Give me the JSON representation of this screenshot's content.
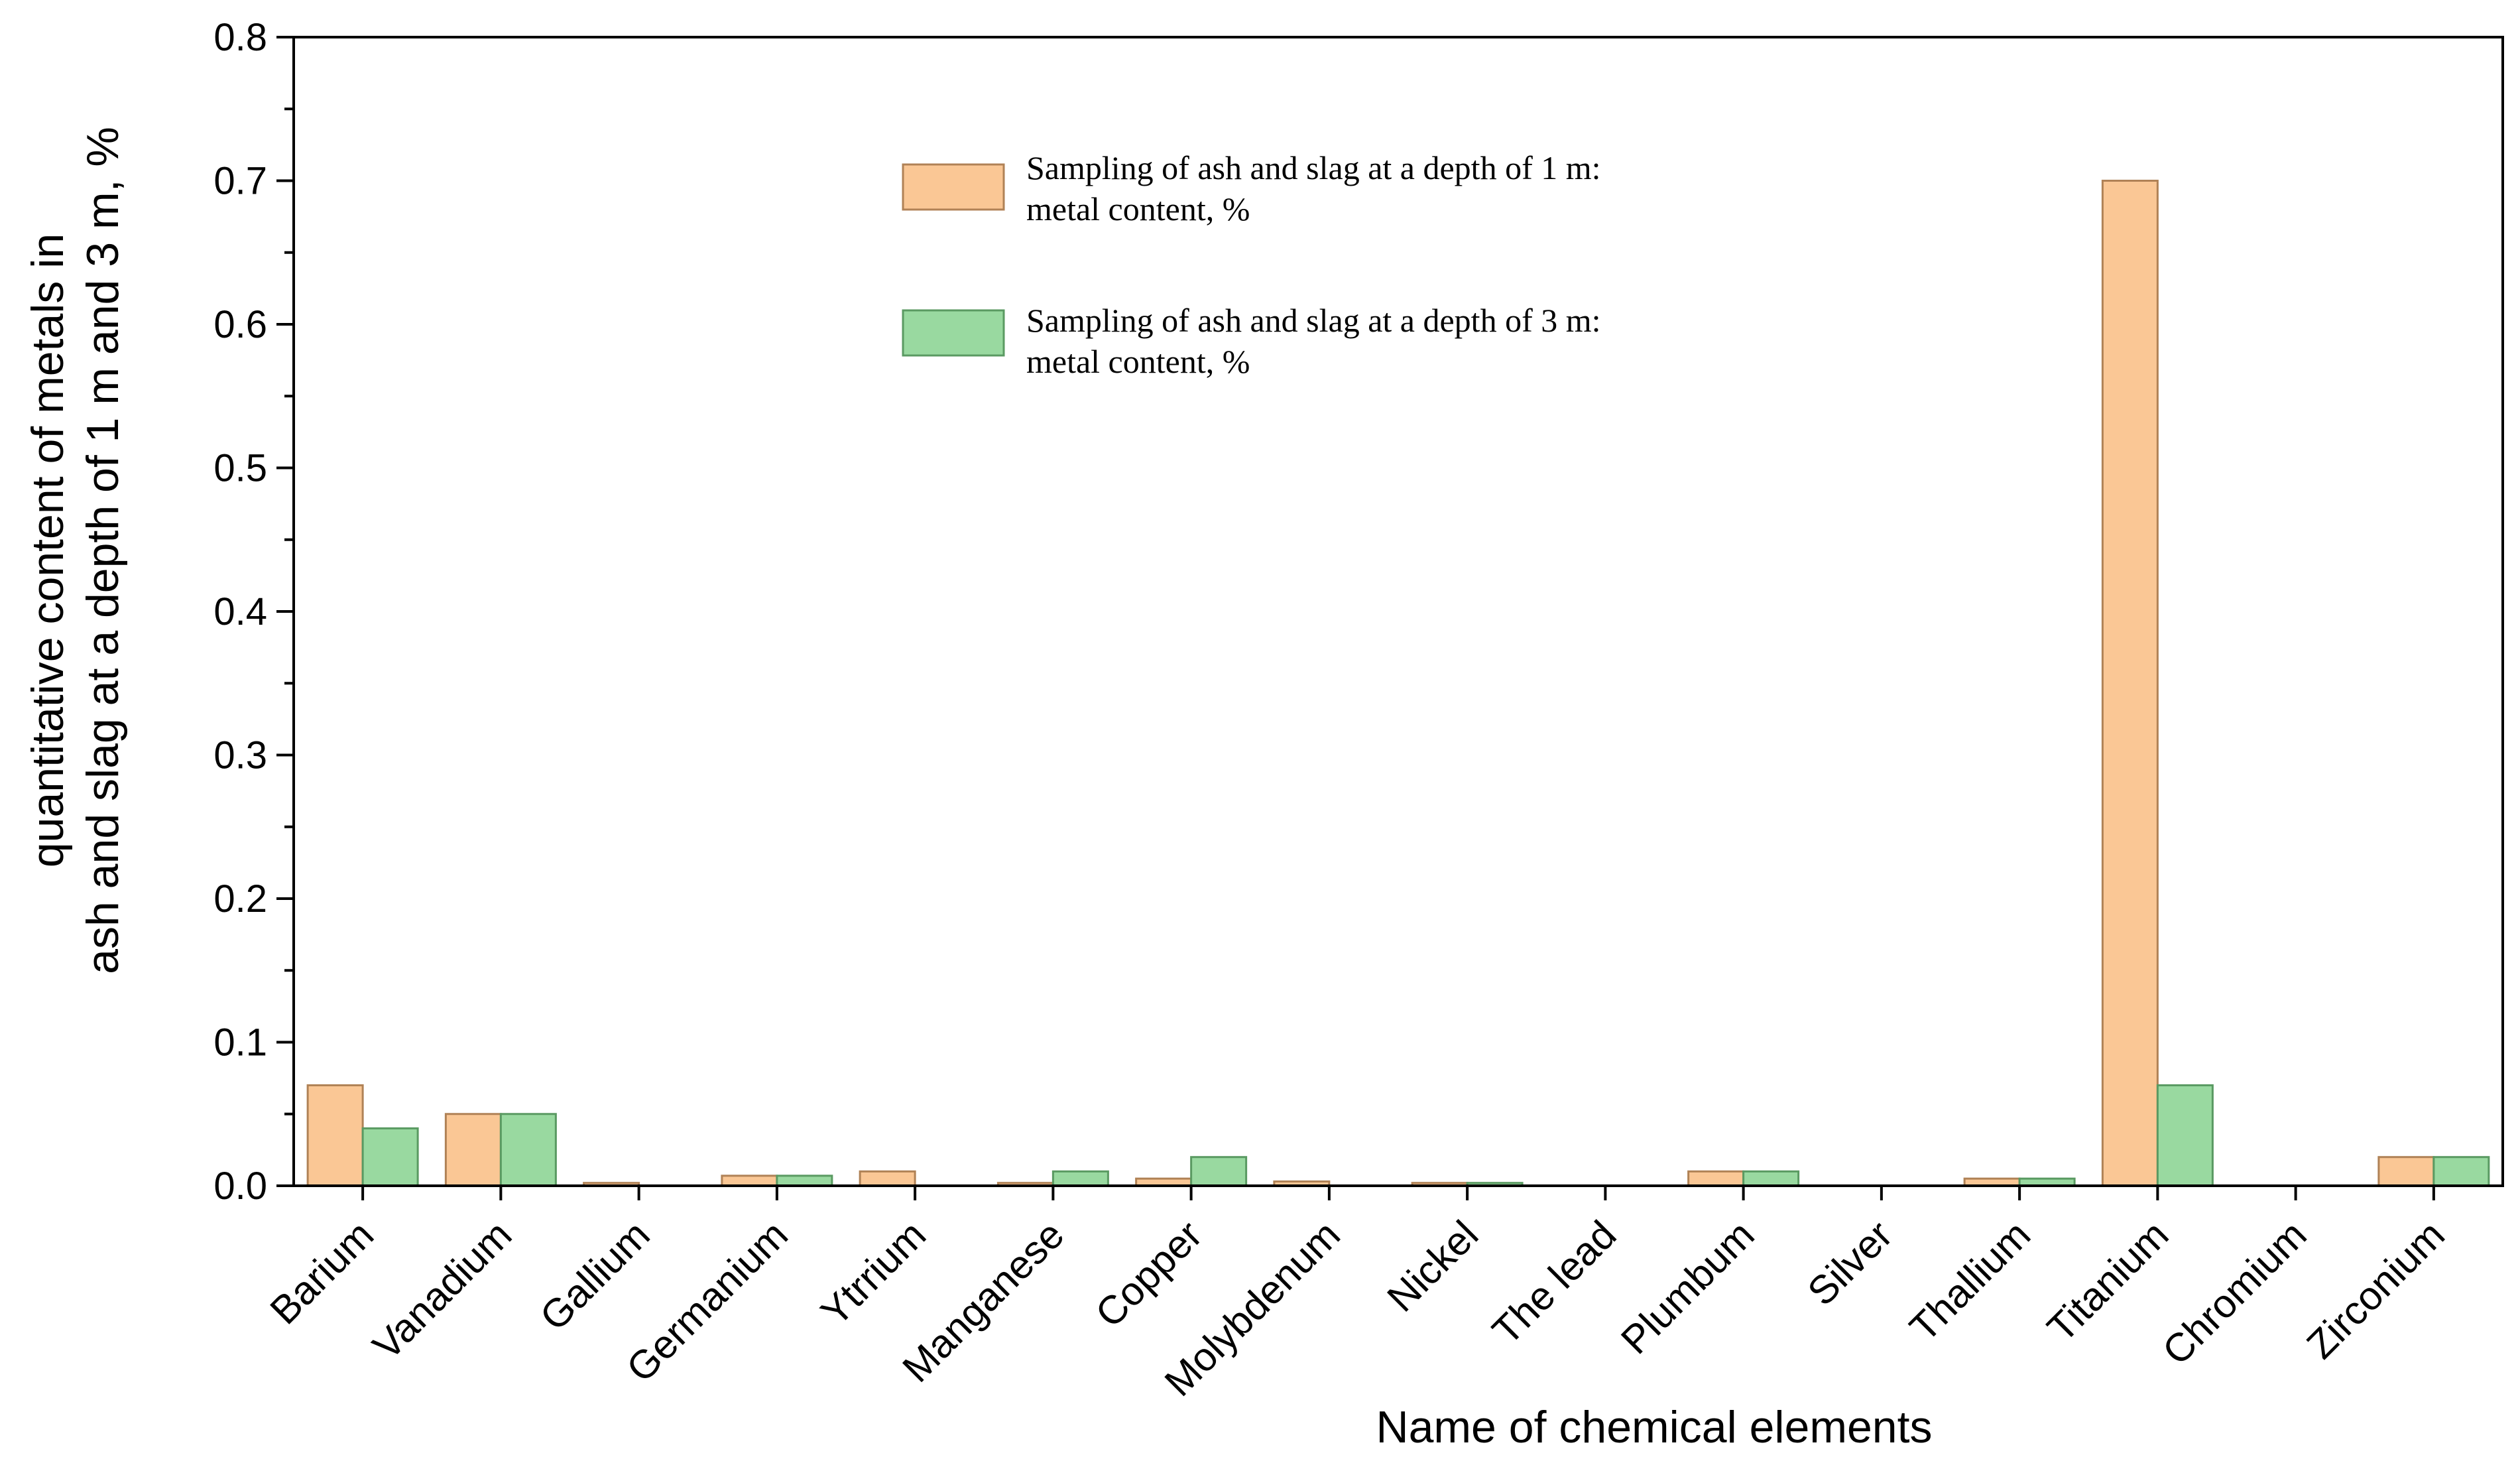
{
  "chart_data": {
    "type": "bar",
    "title": "",
    "xlabel": "Name of chemical elements",
    "ylabel_lines": [
      "quantitative content of metals in",
      "ash and slag  at a depth of 1 m and 3 m, %"
    ],
    "ylim": [
      0,
      0.8
    ],
    "yticks": [
      "0.0",
      "0.1",
      "0.2",
      "0.3",
      "0.4",
      "0.5",
      "0.6",
      "0.7",
      "0.8"
    ],
    "grid": false,
    "legend_position": "top-center",
    "categories": [
      "Barium",
      "Vanadium",
      "Gallium",
      "Germanium",
      "Ytrrium",
      "Manganese",
      "Copper",
      "Molybdenum",
      "Nickel",
      "The lead",
      "Plumbum",
      "Silver",
      "Thallium",
      "Titanium",
      "Chromium",
      "Zirconium"
    ],
    "series": [
      {
        "name": "Sampling of ash and slag at a depth of 1 m: metal content, %",
        "legend_lines": [
          "Sampling of ash and slag at a depth of 1 m:",
          "metal content, %"
        ],
        "color": "#fac795",
        "edge": "#b08256",
        "values": [
          0.07,
          0.05,
          0.002,
          0.007,
          0.01,
          0.002,
          0.005,
          0.003,
          0.002,
          0,
          0.01,
          0,
          0.005,
          0.7,
          0,
          0.02
        ]
      },
      {
        "name": "Sampling of ash and slag at a depth of 3 m: metal content, %",
        "legend_lines": [
          "Sampling of ash and slag at a depth of 3 m:",
          "metal content, %"
        ],
        "color": "#99d9a0",
        "edge": "#5a9a62",
        "values": [
          0.04,
          0.05,
          0,
          0.007,
          0,
          0.01,
          0.02,
          0,
          0.002,
          0,
          0.01,
          0,
          0.005,
          0.07,
          0,
          0.02
        ]
      }
    ]
  }
}
